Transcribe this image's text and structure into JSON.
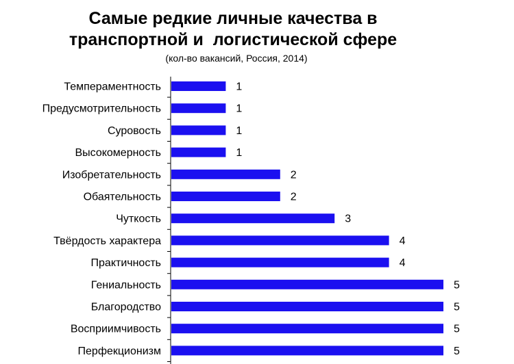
{
  "chart_data": {
    "type": "bar",
    "orientation": "horizontal",
    "title_lines": [
      "Самые редкие личные качества в",
      "транспортной и  логистической сфере"
    ],
    "subtitle": "(кол-во вакансий, Россия, 2014)",
    "categories": [
      "Темпераментность",
      "Предусмотрительность",
      "Суровость",
      "Высокомерность",
      "Изобретательность",
      "Обаятельность",
      "Чуткость",
      "Твёрдость характера",
      "Практичность",
      "Гениальность",
      "Благородство",
      "Восприимчивость",
      "Перфекционизм"
    ],
    "values": [
      1,
      1,
      1,
      1,
      2,
      2,
      3,
      4,
      4,
      5,
      5,
      5,
      5
    ],
    "xlim": [
      0,
      5
    ],
    "grid": false,
    "legend": "none",
    "data_labels": true,
    "bar_color": "#1b10f0",
    "axis_color": "#000000"
  }
}
